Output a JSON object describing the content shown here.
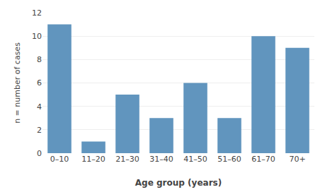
{
  "chart_data": {
    "type": "bar",
    "categories": [
      "0–10",
      "11–20",
      "21–30",
      "31–40",
      "41–50",
      "51–60",
      "61–70",
      "70+"
    ],
    "values": [
      11,
      1,
      5,
      3,
      6,
      3,
      10,
      9
    ],
    "color": "#6195be",
    "xlabel": "Age group (years)",
    "ylabel": "n = number of cases",
    "ylim": [
      0,
      12
    ],
    "yticks": [
      0,
      2,
      4,
      6,
      8,
      10,
      12
    ],
    "grid": true
  }
}
